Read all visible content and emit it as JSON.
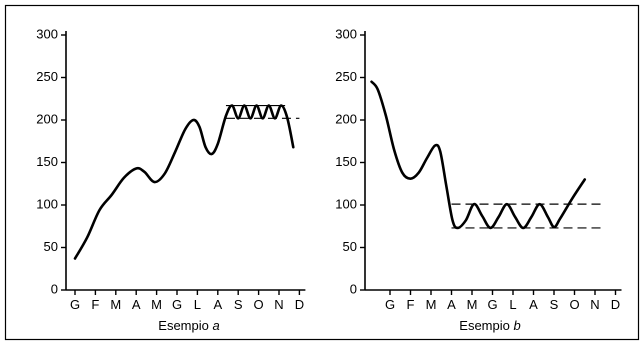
{
  "chart_data": [
    {
      "type": "line",
      "caption_prefix": "Esempio ",
      "caption_letter": "a",
      "categories": [
        "G",
        "F",
        "M",
        "A",
        "M",
        "G",
        "L",
        "A",
        "S",
        "O",
        "N",
        "D"
      ],
      "ylim": [
        0,
        300
      ],
      "yticks": [
        0,
        50,
        100,
        150,
        200,
        250,
        300
      ],
      "points": [
        [
          0,
          37
        ],
        [
          0.6,
          62
        ],
        [
          1.2,
          94
        ],
        [
          1.8,
          112
        ],
        [
          2.4,
          132
        ],
        [
          3.0,
          143
        ],
        [
          3.4,
          139
        ],
        [
          3.9,
          127
        ],
        [
          4.4,
          137
        ],
        [
          4.9,
          162
        ],
        [
          5.4,
          189
        ],
        [
          5.8,
          200
        ],
        [
          6.1,
          192
        ],
        [
          6.4,
          168
        ],
        [
          6.7,
          160
        ],
        [
          7.0,
          172
        ],
        [
          7.4,
          205
        ],
        [
          7.7,
          217
        ],
        [
          8.0,
          202
        ],
        [
          8.3,
          217
        ],
        [
          8.6,
          202
        ],
        [
          8.9,
          217
        ],
        [
          9.2,
          202
        ],
        [
          9.5,
          217
        ],
        [
          9.8,
          202
        ],
        [
          10.1,
          217
        ],
        [
          10.4,
          203
        ],
        [
          10.7,
          168
        ]
      ],
      "reference_lines": [
        {
          "y": 217,
          "from": 7.4,
          "to": 10.3,
          "style": "solid"
        },
        {
          "y": 202,
          "from": 7.4,
          "to": 11.0,
          "style": "dashed"
        }
      ]
    },
    {
      "type": "line",
      "caption_prefix": "Esempio ",
      "caption_letter": "b",
      "categories": [
        "G",
        "F",
        "M",
        "A",
        "M",
        "G",
        "L",
        "A",
        "S",
        "O",
        "N",
        "D"
      ],
      "ylim": [
        0,
        300
      ],
      "yticks": [
        0,
        50,
        100,
        150,
        200,
        250,
        300
      ],
      "points": [
        [
          -0.9,
          245
        ],
        [
          -0.6,
          236
        ],
        [
          -0.2,
          205
        ],
        [
          0.2,
          165
        ],
        [
          0.6,
          138
        ],
        [
          1.0,
          131
        ],
        [
          1.4,
          138
        ],
        [
          1.8,
          155
        ],
        [
          2.2,
          170
        ],
        [
          2.45,
          163
        ],
        [
          2.75,
          122
        ],
        [
          3.05,
          82
        ],
        [
          3.3,
          73
        ],
        [
          3.7,
          82
        ],
        [
          4.1,
          101
        ],
        [
          4.5,
          87
        ],
        [
          4.9,
          73
        ],
        [
          5.3,
          86
        ],
        [
          5.7,
          101
        ],
        [
          6.1,
          86
        ],
        [
          6.5,
          73
        ],
        [
          6.9,
          86
        ],
        [
          7.3,
          101
        ],
        [
          7.7,
          86
        ],
        [
          8.0,
          74
        ],
        [
          8.3,
          84
        ],
        [
          8.9,
          108
        ],
        [
          9.5,
          130
        ]
      ],
      "reference_lines": [
        {
          "y": 101,
          "from": 3.0,
          "to": 10.4,
          "style": "dashed"
        },
        {
          "y": 73,
          "from": 3.0,
          "to": 10.4,
          "style": "dashed"
        }
      ]
    }
  ]
}
